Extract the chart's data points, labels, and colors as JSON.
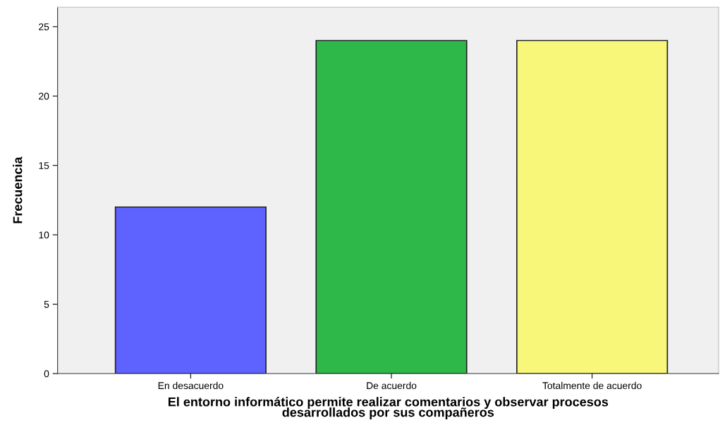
{
  "chart_data": {
    "type": "bar",
    "categories": [
      "En desacuerdo",
      "De acuerdo",
      "Totalmente de acuerdo"
    ],
    "values": [
      12,
      24,
      24
    ],
    "colors": [
      "#5e62ff",
      "#2fb84a",
      "#f9f77a"
    ],
    "xlabel": "El entorno informático permite realizar comentarios y observar procesos\ndesarrollados por sus compañeros",
    "ylabel": "Frecuencia",
    "ylim": [
      0,
      26.4
    ],
    "yticks": [
      0,
      5,
      10,
      15,
      20,
      25
    ],
    "grid": false
  }
}
